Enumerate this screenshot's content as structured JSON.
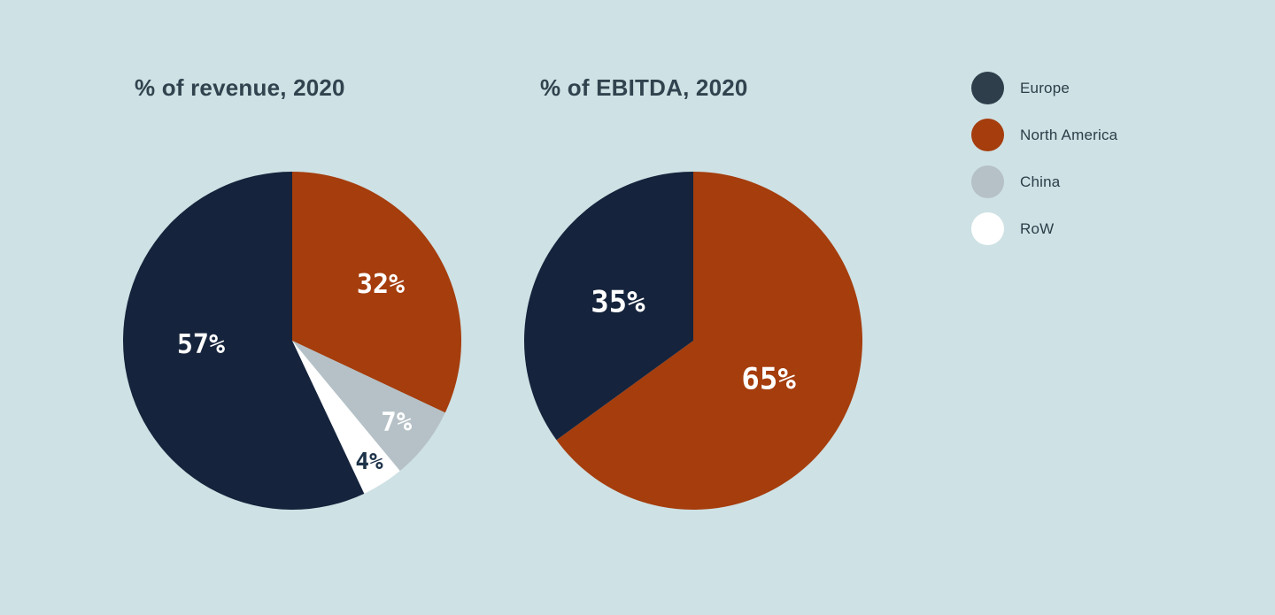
{
  "page": {
    "background_color": "#cee1e4",
    "title_color": "#31434e",
    "legend_text_color": "#2c3d48"
  },
  "legend": {
    "position": "right",
    "items": [
      {
        "label": "Europe",
        "color": "#2e3f4b"
      },
      {
        "label": "North America",
        "color": "#a53d0d"
      },
      {
        "label": "China",
        "color": "#b5c1c6"
      },
      {
        "label": "RoW",
        "color": "#ffffff"
      }
    ]
  },
  "chart_data": [
    {
      "type": "pie",
      "title": "% of revenue, 2020",
      "categories": [
        "North America",
        "China",
        "RoW",
        "Europe"
      ],
      "values": [
        32,
        7,
        4,
        57
      ],
      "labels": [
        "32%",
        "7%",
        "4%",
        "57%"
      ],
      "colors": [
        "#a53d0d",
        "#b5c1c6",
        "#ffffff",
        "#15233c"
      ],
      "label_colors": [
        "#ffffff",
        "#ffffff",
        "#1d3349",
        "#ffffff"
      ],
      "label_r": [
        0.62,
        0.78,
        0.85,
        0.54
      ],
      "label_a": [
        0,
        0,
        0,
        10
      ],
      "label_size": [
        30,
        29,
        26,
        30
      ],
      "start_angle": 0,
      "legend_position": "right"
    },
    {
      "type": "pie",
      "title": "% of EBITDA, 2020",
      "categories": [
        "North America",
        "Europe"
      ],
      "values": [
        65,
        35
      ],
      "labels": [
        "65%",
        "35%"
      ],
      "colors": [
        "#a53d0d",
        "#15233c"
      ],
      "label_colors": [
        "#ffffff",
        "#ffffff"
      ],
      "label_r": [
        0.5,
        0.5
      ],
      "label_a": [
        0,
        0
      ],
      "label_size": [
        34,
        34
      ],
      "start_angle": 0,
      "legend_position": "right"
    }
  ]
}
